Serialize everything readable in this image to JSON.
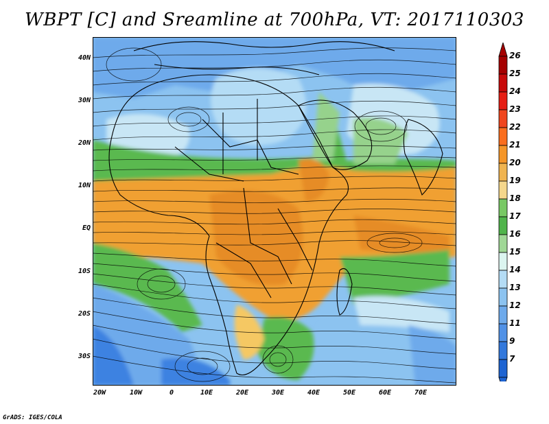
{
  "title": "WBPT [C] and Sreamline at 700hPa, VT: 2017110303",
  "credit": "GrADS: IGES/COLA",
  "y_labels": [
    "40N",
    "30N",
    "20N",
    "10N",
    "EQ",
    "10S",
    "20S",
    "30S"
  ],
  "x_labels": [
    "20W",
    "10W",
    "0",
    "10E",
    "20E",
    "30E",
    "40E",
    "50E",
    "60E",
    "70E"
  ],
  "colorbar": {
    "labels": [
      "26",
      "25",
      "24",
      "23",
      "22",
      "21",
      "20",
      "19",
      "18",
      "17",
      "16",
      "15",
      "14",
      "13",
      "12",
      "11",
      "9",
      "7"
    ],
    "colors": [
      "#a50000",
      "#c80a0a",
      "#e61e14",
      "#f0461e",
      "#fa6e1e",
      "#f59628",
      "#f0b450",
      "#f5d78c",
      "#78c864",
      "#50b44b",
      "#a0d796",
      "#dcf5f0",
      "#b4dcf5",
      "#8cc3f0",
      "#6eaaeb",
      "#5091e6",
      "#3278dc",
      "#1e64d2"
    ]
  },
  "palette": {
    "cold": "#3c82e1",
    "cool": "#8cc3f0",
    "pale": "#c8e6f5",
    "green": "#5ab950",
    "lightgreen": "#96d28c",
    "orange": "#f0a032",
    "darkorange": "#e68c28",
    "yellow": "#f5c864"
  }
}
